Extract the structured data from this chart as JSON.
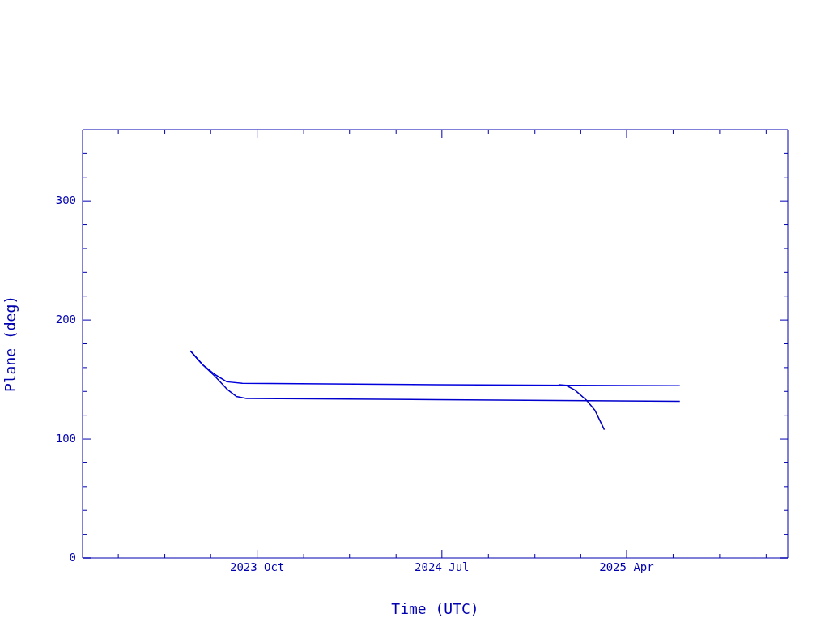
{
  "chart_data": {
    "type": "line",
    "xlabel": "Time (UTC)",
    "ylabel": "Plane (deg)",
    "xlim": [
      "2023-01-15",
      "2025-11-26"
    ],
    "ylim": [
      0,
      360
    ],
    "xticks": [
      {
        "value": "2023-03-09",
        "label": null
      },
      {
        "value": "2023-05-17",
        "label": null
      },
      {
        "value": "2023-07-24",
        "label": null
      },
      {
        "value": "2023-10-01",
        "label": "2023 Oct"
      },
      {
        "value": "2023-12-09",
        "label": null
      },
      {
        "value": "2024-02-15",
        "label": null
      },
      {
        "value": "2024-04-24",
        "label": null
      },
      {
        "value": "2024-07-01",
        "label": "2024 Jul"
      },
      {
        "value": "2024-09-08",
        "label": null
      },
      {
        "value": "2024-11-16",
        "label": null
      },
      {
        "value": "2025-01-23",
        "label": null
      },
      {
        "value": "2025-04-01",
        "label": "2025 Apr"
      },
      {
        "value": "2025-06-09",
        "label": null
      },
      {
        "value": "2025-08-17",
        "label": null
      },
      {
        "value": "2025-10-25",
        "label": null
      }
    ],
    "yticks": [
      0,
      {
        "value": 20,
        "label": null
      },
      {
        "value": 40,
        "label": null
      },
      {
        "value": 60,
        "label": null
      },
      {
        "value": 80,
        "label": null
      },
      100,
      {
        "value": 120,
        "label": null
      },
      {
        "value": 140,
        "label": null
      },
      {
        "value": 160,
        "label": null
      },
      {
        "value": 180,
        "label": null
      },
      200,
      {
        "value": 220,
        "label": null
      },
      {
        "value": 240,
        "label": null
      },
      {
        "value": 260,
        "label": null
      },
      {
        "value": 280,
        "label": null
      },
      300,
      {
        "value": 320,
        "label": null
      },
      {
        "value": 340,
        "label": null
      }
    ],
    "grid": false,
    "legend": false,
    "marker": "none",
    "line_style": "solid",
    "series": [
      {
        "color": "#0000dd",
        "x": [
          "2023-06-24",
          "2023-07-12",
          "2023-07-30",
          "2023-08-17",
          "2023-09-09",
          "2024-06-23",
          "2025-06-19"
        ],
        "values": [
          174,
          162.5,
          154.3,
          148.1,
          146.8,
          145.7,
          144.7
        ]
      },
      {
        "color": "#0000cc",
        "x": [
          "2023-06-24",
          "2023-07-12",
          "2023-07-30",
          "2023-08-17",
          "2023-08-31",
          "2023-09-15",
          "2024-06-23",
          "2025-06-19"
        ],
        "values": [
          174,
          162.5,
          152.9,
          142,
          135.8,
          134.1,
          133.1,
          131.7
        ]
      },
      {
        "color": "#0000bb",
        "x": [
          "2024-12-21",
          "2025-01-01",
          "2025-01-14",
          "2025-02-01",
          "2025-02-13",
          "2025-02-27"
        ],
        "values": [
          145.7,
          145.1,
          141.3,
          132.4,
          124.2,
          107.8
        ]
      }
    ]
  }
}
